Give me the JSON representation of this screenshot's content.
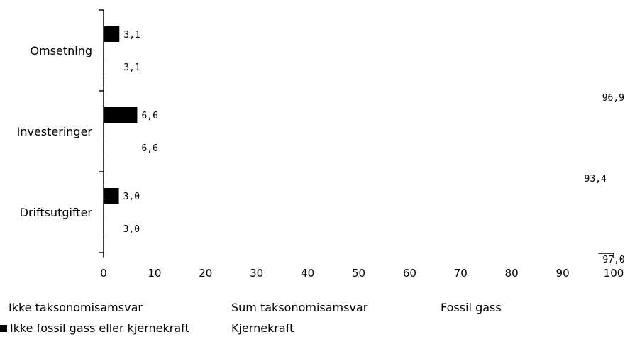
{
  "chart_data": {
    "type": "bar",
    "orientation": "horizontal",
    "categories": [
      "Omsetning",
      "Investeringer",
      "Driftsutgifter"
    ],
    "series": [
      {
        "name": "Ikke fossil gass eller kjernekraft",
        "values": [
          3.1,
          6.6,
          3.0
        ],
        "labels": [
          "3,1",
          "6,6",
          "3,0"
        ],
        "color": "#000000"
      },
      {
        "name": "Sum taksonomisamsvar",
        "values": [
          3.1,
          6.6,
          3.0
        ],
        "labels": [
          "3,1",
          "6,6",
          "3,0"
        ],
        "color": "#ffffff"
      },
      {
        "name": "Ikke taksonomisamsvar",
        "values": [
          96.9,
          93.4,
          97.0
        ],
        "labels": [
          "96,9",
          "93,4",
          "97,0"
        ],
        "color": "#ffffff"
      }
    ],
    "xlim": [
      0,
      100
    ],
    "xticks": [
      "0",
      "10",
      "20",
      "30",
      "40",
      "50",
      "60",
      "70",
      "80",
      "90",
      "100"
    ],
    "grid": false,
    "legend_position": "bottom"
  },
  "legend": {
    "items": [
      {
        "label": "Ikke taksonomisamsvar",
        "swatch": false
      },
      {
        "label": "Sum taksonomisamsvar",
        "swatch": false
      },
      {
        "label": "Fossil gass",
        "swatch": false
      },
      {
        "label": "Ikke fossil gass eller kjernekraft",
        "swatch": true,
        "color": "#000000"
      },
      {
        "label": "Kjernekraft",
        "swatch": false
      }
    ]
  }
}
